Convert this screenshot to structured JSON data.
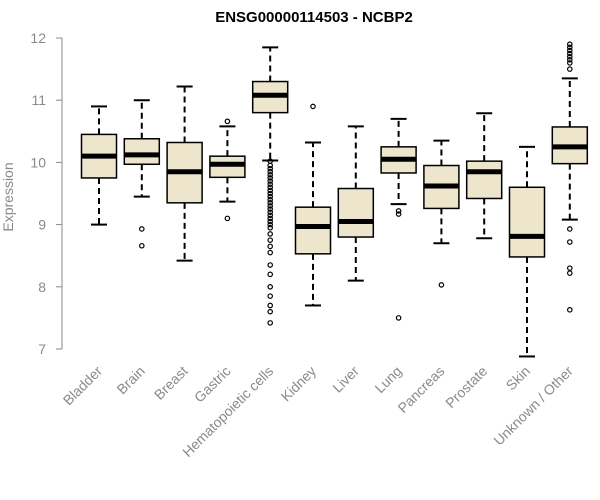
{
  "chart_data": {
    "type": "boxplot",
    "title": "ENSG00000114503 - NCBP2",
    "xlabel": "",
    "ylabel": "Expression",
    "ylim": [
      7,
      12
    ],
    "yticks": [
      7,
      8,
      9,
      10,
      11,
      12
    ],
    "box_color": "#ede6cc",
    "categories": [
      "Bladder",
      "Brain",
      "Breast",
      "Gastric",
      "Hematopoietic cells",
      "Kidney",
      "Liver",
      "Lung",
      "Pancreas",
      "Prostate",
      "Skin",
      "Unknown / Other"
    ],
    "boxes": [
      {
        "name": "Bladder",
        "whisker_low": 9.0,
        "q1": 9.75,
        "median": 10.1,
        "q3": 10.45,
        "whisker_high": 10.9,
        "outliers": []
      },
      {
        "name": "Brain",
        "whisker_low": 9.45,
        "q1": 9.97,
        "median": 10.12,
        "q3": 10.38,
        "whisker_high": 11.0,
        "outliers": [
          8.93,
          8.66
        ]
      },
      {
        "name": "Breast",
        "whisker_low": 8.42,
        "q1": 9.35,
        "median": 9.85,
        "q3": 10.32,
        "whisker_high": 11.22,
        "outliers": []
      },
      {
        "name": "Gastric",
        "whisker_low": 9.37,
        "q1": 9.76,
        "median": 9.97,
        "q3": 10.1,
        "whisker_high": 10.58,
        "outliers": [
          10.66,
          9.1
        ]
      },
      {
        "name": "Hematopoietic cells",
        "whisker_low": 10.03,
        "q1": 10.8,
        "median": 11.08,
        "q3": 11.3,
        "whisker_high": 11.85,
        "outliers": [
          10.02,
          9.95,
          9.9,
          9.85,
          9.8,
          9.75,
          9.7,
          9.65,
          9.6,
          9.55,
          9.5,
          9.45,
          9.4,
          9.35,
          9.3,
          9.25,
          9.2,
          9.15,
          9.1,
          9.05,
          9.0,
          8.95,
          8.85,
          8.75,
          8.65,
          8.55,
          8.35,
          8.2,
          8.0,
          7.85,
          7.7,
          7.6,
          7.42
        ]
      },
      {
        "name": "Kidney",
        "whisker_low": 7.7,
        "q1": 8.53,
        "median": 8.97,
        "q3": 9.28,
        "whisker_high": 10.32,
        "outliers": [
          10.9
        ]
      },
      {
        "name": "Liver",
        "whisker_low": 8.1,
        "q1": 8.8,
        "median": 9.05,
        "q3": 9.58,
        "whisker_high": 10.58,
        "outliers": []
      },
      {
        "name": "Lung",
        "whisker_low": 9.33,
        "q1": 9.83,
        "median": 10.05,
        "q3": 10.25,
        "whisker_high": 10.7,
        "outliers": [
          9.22,
          9.17,
          7.5
        ]
      },
      {
        "name": "Pancreas",
        "whisker_low": 8.7,
        "q1": 9.26,
        "median": 9.62,
        "q3": 9.95,
        "whisker_high": 10.35,
        "outliers": [
          8.03
        ]
      },
      {
        "name": "Prostate",
        "whisker_low": 8.78,
        "q1": 9.42,
        "median": 9.85,
        "q3": 10.02,
        "whisker_high": 10.79,
        "outliers": []
      },
      {
        "name": "Skin",
        "whisker_low": 6.88,
        "q1": 8.48,
        "median": 8.81,
        "q3": 9.6,
        "whisker_high": 10.25,
        "outliers": []
      },
      {
        "name": "Unknown / Other",
        "whisker_low": 9.08,
        "q1": 9.98,
        "median": 10.25,
        "q3": 10.57,
        "whisker_high": 11.35,
        "outliers": [
          11.9,
          11.85,
          11.8,
          11.75,
          11.7,
          11.65,
          11.6,
          11.5,
          8.93,
          8.72,
          8.3,
          8.22,
          7.63
        ]
      }
    ]
  }
}
